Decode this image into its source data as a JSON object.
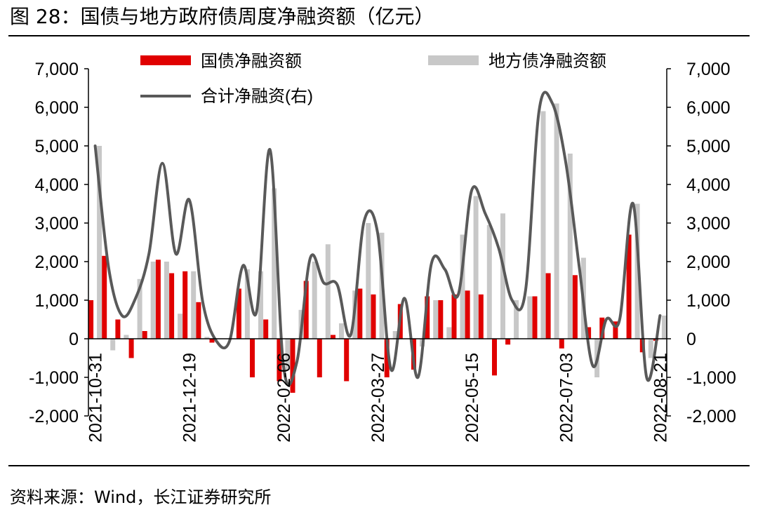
{
  "figure": {
    "title": "图 28：国债与地方政府债周度净融资额（亿元）",
    "source": "资料来源：Wind，长江证券研究所"
  },
  "colors": {
    "gov": "#e00000",
    "local": "#c8c8c8",
    "total": "#595959",
    "axis": "#000000"
  },
  "chart_data": {
    "type": "bar",
    "title": "国债与地方政府债周度净融资额（亿元）",
    "ylim": [
      -2000,
      7000
    ],
    "y2lim": [
      -2000,
      7000
    ],
    "yticks": [
      "7,000",
      "6,000",
      "5,000",
      "4,000",
      "3,000",
      "2,000",
      "1,000",
      "0",
      "-1,000",
      "-2,000"
    ],
    "ytick_values": [
      7000,
      6000,
      5000,
      4000,
      3000,
      2000,
      1000,
      0,
      -1000,
      -2000
    ],
    "x_tick_labels": [
      {
        "index": 0,
        "label": "2021-10-31"
      },
      {
        "index": 7,
        "label": "2021-12-19"
      },
      {
        "index": 14,
        "label": "2022-02-06"
      },
      {
        "index": 21,
        "label": "2022-03-27"
      },
      {
        "index": 28,
        "label": "2022-05-15"
      },
      {
        "index": 35,
        "label": "2022-07-03"
      },
      {
        "index": 42,
        "label": "2022-08-21"
      }
    ],
    "legend": [
      "国债净融资额",
      "地方债净融资额",
      "合计净融资(右)"
    ],
    "categories": [
      "2021-10-31",
      "2021-11-07",
      "2021-11-14",
      "2021-11-21",
      "2021-11-28",
      "2021-12-05",
      "2021-12-12",
      "2021-12-19",
      "2021-12-26",
      "2022-01-02",
      "2022-01-09",
      "2022-01-16",
      "2022-01-23",
      "2022-01-30",
      "2022-02-06",
      "2022-02-13",
      "2022-02-20",
      "2022-02-27",
      "2022-03-06",
      "2022-03-13",
      "2022-03-20",
      "2022-03-27",
      "2022-04-03",
      "2022-04-10",
      "2022-04-17",
      "2022-04-24",
      "2022-05-01",
      "2022-05-08",
      "2022-05-15",
      "2022-05-22",
      "2022-05-29",
      "2022-06-05",
      "2022-06-12",
      "2022-06-19",
      "2022-06-26",
      "2022-07-03",
      "2022-07-10",
      "2022-07-17",
      "2022-07-24",
      "2022-07-31",
      "2022-08-07",
      "2022-08-14",
      "2022-08-21"
    ],
    "series": [
      {
        "name": "国债净融资额",
        "kind": "bar",
        "values": [
          1000,
          2150,
          500,
          -500,
          200,
          2050,
          1700,
          1750,
          950,
          -100,
          0,
          1300,
          -1000,
          500,
          -1100,
          -1400,
          1500,
          -1000,
          100,
          -1100,
          1300,
          1150,
          -1000,
          900,
          -800,
          1100,
          1000,
          1150,
          1250,
          1150,
          -950,
          -150,
          0,
          1100,
          1700,
          -250,
          1650,
          300,
          550,
          450,
          2700,
          -350,
          -50
        ]
      },
      {
        "name": "地方债净融资额",
        "kind": "bar",
        "values": [
          5000,
          -300,
          100,
          1550,
          2000,
          2000,
          650,
          1750,
          50,
          0,
          0,
          1800,
          1750,
          3900,
          -800,
          750,
          2000,
          2450,
          400,
          1250,
          3000,
          2750,
          200,
          0,
          -200,
          1000,
          300,
          2700,
          3700,
          2950,
          3250,
          1000,
          1100,
          5900,
          6100,
          4800,
          2100,
          -1000,
          0,
          0,
          3500,
          -500,
          600
        ]
      },
      {
        "name": "合计净融资(右)",
        "kind": "line",
        "values": [
          5000,
          1850,
          600,
          1050,
          2200,
          4550,
          2200,
          3600,
          950,
          -50,
          -50,
          1900,
          700,
          4900,
          -700,
          -600,
          2100,
          1450,
          1400,
          100,
          3050,
          2750,
          -800,
          1050,
          -1000,
          1950,
          1800,
          1150,
          3850,
          3250,
          2350,
          1000,
          1250,
          5900,
          6100,
          4550,
          1850,
          -700,
          500,
          500,
          3500,
          -1000,
          600
        ]
      }
    ]
  }
}
